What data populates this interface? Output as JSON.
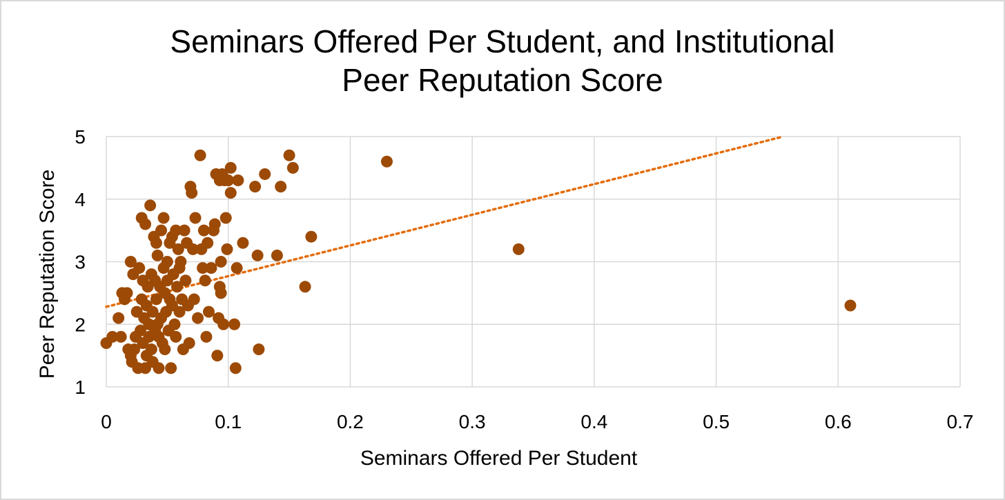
{
  "chart_data": {
    "type": "scatter",
    "title_line1": "Seminars Offered Per Student, and Institutional",
    "title_line2": "Peer Reputation Score",
    "xlabel": "Seminars Offered Per Student",
    "ylabel": "Peer Reputation Score",
    "xlim": [
      0,
      0.7
    ],
    "ylim": [
      1,
      5
    ],
    "xticks": [
      "0",
      "0.1",
      "0.2",
      "0.3",
      "0.4",
      "0.5",
      "0.6",
      "0.7"
    ],
    "yticks": [
      "1",
      "2",
      "3",
      "4",
      "5"
    ],
    "grid": true,
    "marker_color": "#9C4A06",
    "trendline": {
      "style": "dotted",
      "color": "#E46C0A",
      "x0": 0,
      "y0": 2.28,
      "x1": 0.555,
      "y1": 5.0
    },
    "points": [
      [
        0.0,
        1.7
      ],
      [
        0.005,
        1.8
      ],
      [
        0.01,
        2.1
      ],
      [
        0.012,
        1.8
      ],
      [
        0.013,
        2.5
      ],
      [
        0.015,
        2.4
      ],
      [
        0.017,
        2.5
      ],
      [
        0.018,
        1.6
      ],
      [
        0.02,
        3.0
      ],
      [
        0.02,
        1.5
      ],
      [
        0.021,
        1.4
      ],
      [
        0.022,
        2.8
      ],
      [
        0.023,
        1.6
      ],
      [
        0.024,
        1.8
      ],
      [
        0.025,
        2.2
      ],
      [
        0.026,
        1.3
      ],
      [
        0.027,
        2.9
      ],
      [
        0.028,
        1.9
      ],
      [
        0.029,
        3.7
      ],
      [
        0.029,
        2.4
      ],
      [
        0.03,
        2.7
      ],
      [
        0.03,
        1.7
      ],
      [
        0.031,
        2.1
      ],
      [
        0.032,
        3.6
      ],
      [
        0.032,
        1.3
      ],
      [
        0.033,
        2.3
      ],
      [
        0.033,
        1.5
      ],
      [
        0.034,
        2.6
      ],
      [
        0.035,
        2.0
      ],
      [
        0.035,
        1.8
      ],
      [
        0.036,
        3.9
      ],
      [
        0.037,
        2.8
      ],
      [
        0.037,
        1.6
      ],
      [
        0.038,
        2.2
      ],
      [
        0.038,
        1.4
      ],
      [
        0.039,
        3.4
      ],
      [
        0.04,
        2.7
      ],
      [
        0.04,
        1.9
      ],
      [
        0.041,
        3.3
      ],
      [
        0.041,
        2.4
      ],
      [
        0.042,
        3.1
      ],
      [
        0.042,
        2.0
      ],
      [
        0.043,
        1.8
      ],
      [
        0.043,
        1.3
      ],
      [
        0.044,
        2.6
      ],
      [
        0.045,
        3.5
      ],
      [
        0.045,
        2.1
      ],
      [
        0.046,
        1.7
      ],
      [
        0.047,
        3.7
      ],
      [
        0.047,
        2.9
      ],
      [
        0.048,
        2.5
      ],
      [
        0.048,
        1.6
      ],
      [
        0.049,
        2.2
      ],
      [
        0.05,
        3.0
      ],
      [
        0.05,
        2.7
      ],
      [
        0.051,
        1.9
      ],
      [
        0.052,
        3.3
      ],
      [
        0.052,
        2.4
      ],
      [
        0.053,
        1.3
      ],
      [
        0.054,
        3.4
      ],
      [
        0.054,
        2.3
      ],
      [
        0.055,
        2.8
      ],
      [
        0.056,
        2.0
      ],
      [
        0.057,
        3.5
      ],
      [
        0.057,
        1.8
      ],
      [
        0.058,
        2.6
      ],
      [
        0.059,
        3.2
      ],
      [
        0.06,
        2.2
      ],
      [
        0.06,
        2.9
      ],
      [
        0.061,
        3.0
      ],
      [
        0.062,
        2.4
      ],
      [
        0.063,
        1.6
      ],
      [
        0.064,
        3.5
      ],
      [
        0.065,
        2.7
      ],
      [
        0.066,
        3.3
      ],
      [
        0.067,
        2.3
      ],
      [
        0.068,
        1.7
      ],
      [
        0.069,
        4.2
      ],
      [
        0.07,
        4.1
      ],
      [
        0.071,
        3.2
      ],
      [
        0.072,
        2.4
      ],
      [
        0.073,
        3.7
      ],
      [
        0.075,
        2.1
      ],
      [
        0.077,
        4.7
      ],
      [
        0.078,
        3.2
      ],
      [
        0.079,
        2.9
      ],
      [
        0.08,
        3.5
      ],
      [
        0.081,
        2.7
      ],
      [
        0.082,
        1.8
      ],
      [
        0.083,
        3.3
      ],
      [
        0.084,
        2.2
      ],
      [
        0.086,
        2.9
      ],
      [
        0.088,
        3.5
      ],
      [
        0.089,
        3.6
      ],
      [
        0.09,
        4.4
      ],
      [
        0.091,
        1.5
      ],
      [
        0.092,
        2.1
      ],
      [
        0.093,
        2.6
      ],
      [
        0.093,
        4.3
      ],
      [
        0.094,
        2.5
      ],
      [
        0.094,
        3.0
      ],
      [
        0.095,
        4.4
      ],
      [
        0.096,
        2.0
      ],
      [
        0.097,
        4.3
      ],
      [
        0.098,
        3.7
      ],
      [
        0.099,
        3.2
      ],
      [
        0.1,
        4.3
      ],
      [
        0.102,
        4.5
      ],
      [
        0.102,
        4.1
      ],
      [
        0.105,
        2.0
      ],
      [
        0.106,
        1.3
      ],
      [
        0.107,
        2.9
      ],
      [
        0.108,
        4.3
      ],
      [
        0.112,
        3.3
      ],
      [
        0.122,
        4.2
      ],
      [
        0.124,
        3.1
      ],
      [
        0.125,
        1.6
      ],
      [
        0.13,
        4.4
      ],
      [
        0.14,
        3.1
      ],
      [
        0.143,
        4.2
      ],
      [
        0.15,
        4.7
      ],
      [
        0.153,
        4.5
      ],
      [
        0.163,
        2.6
      ],
      [
        0.168,
        3.4
      ],
      [
        0.23,
        4.6
      ],
      [
        0.338,
        3.2
      ],
      [
        0.61,
        2.3
      ]
    ]
  }
}
